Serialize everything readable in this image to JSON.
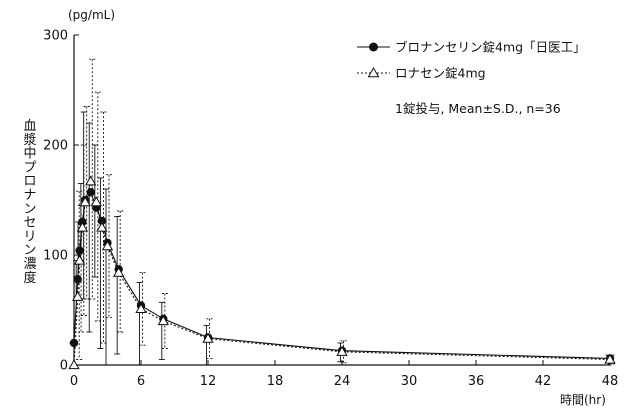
{
  "chart_data": {
    "type": "line",
    "y_unit_label": "(pg/mL)",
    "ylabel": "血漿中プロナンセリン濃度",
    "xlabel": "時間(hr)",
    "xlim": [
      0,
      48
    ],
    "ylim": [
      0,
      300
    ],
    "x_ticks": [
      0,
      6,
      12,
      18,
      24,
      30,
      36,
      42,
      48
    ],
    "y_ticks": [
      0,
      100,
      200,
      300
    ],
    "grid": false,
    "legend_position": "top-right",
    "annotation": "1錠投与, Mean±S.D., n=36",
    "series": [
      {
        "name": "ブロナンセリン錠4mg「日医工」",
        "marker": "filled-circle",
        "line_style": "solid",
        "color": "#111111",
        "x": [
          0,
          0.33,
          0.5,
          0.75,
          1,
          1.5,
          2,
          2.5,
          3,
          4,
          6,
          8,
          12,
          24,
          48
        ],
        "y": [
          20,
          78,
          104,
          130,
          150,
          157,
          143,
          131,
          111,
          87,
          54,
          42,
          25,
          13,
          6
        ],
        "sd_upper": [
          20,
          95,
          130,
          165,
          230,
          220,
          200,
          170,
          160,
          135,
          75,
          57,
          36,
          20,
          9
        ],
        "sd_lower": [
          20,
          60,
          78,
          95,
          60,
          30,
          80,
          15,
          0,
          10,
          0,
          5,
          0,
          3,
          0
        ]
      },
      {
        "name": "ロナセン錠4mg",
        "marker": "open-triangle",
        "line_style": "dotted",
        "color": "#111111",
        "x": [
          0,
          0.33,
          0.5,
          0.75,
          1,
          1.5,
          2,
          2.5,
          3,
          4,
          6,
          8,
          12,
          24,
          48
        ],
        "y": [
          0,
          62,
          95,
          125,
          148,
          167,
          148,
          125,
          108,
          84,
          51,
          40,
          24,
          12,
          5
        ],
        "sd_upper": [
          0,
          158,
          145,
          200,
          235,
          278,
          248,
          230,
          173,
          140,
          84,
          65,
          42,
          22,
          9
        ],
        "sd_lower": [
          0,
          5,
          30,
          45,
          60,
          60,
          40,
          20,
          43,
          30,
          18,
          15,
          6,
          2,
          1
        ]
      }
    ]
  }
}
